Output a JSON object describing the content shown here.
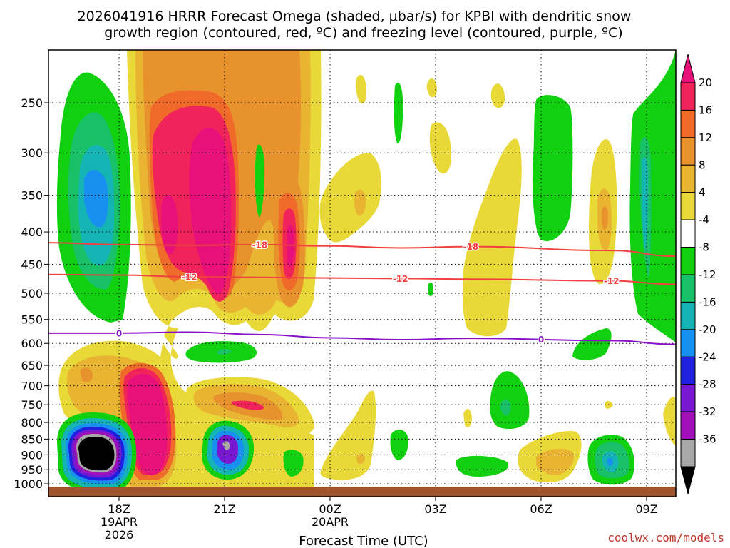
{
  "chart_data": {
    "type": "heatmap",
    "title_lines": [
      "2026041916 HRRR Forecast Omega (shaded, μbar/s) for KPBI with dendritic snow",
      "growth region (contoured, red, ºC) and freezing level (contoured, purple, ºC)"
    ],
    "xlabel": "Forecast Time (UTC)",
    "ylabel": "",
    "credit": "coolwx.com/models",
    "x_ticks": [
      {
        "label": "18Z",
        "sub": [
          "19APR",
          "2026"
        ],
        "hour": 18
      },
      {
        "label": "21Z",
        "sub": [],
        "hour": 21
      },
      {
        "label": "00Z",
        "sub": [
          "20APR"
        ],
        "hour": 24
      },
      {
        "label": "03Z",
        "sub": [],
        "hour": 27
      },
      {
        "label": "06Z",
        "sub": [],
        "hour": 30
      },
      {
        "label": "09Z",
        "sub": [],
        "hour": 33
      }
    ],
    "x_range_hours": [
      16,
      34
    ],
    "y_ticks": [
      "250",
      "300",
      "350",
      "400",
      "450",
      "500",
      "550",
      "600",
      "650",
      "700",
      "750",
      "800",
      "850",
      "900",
      "950",
      "1000"
    ],
    "y_range_hPa": [
      1025,
      200
    ],
    "colorbar": {
      "labels": [
        "20",
        "16",
        "12",
        "8",
        "4",
        "-4",
        "-8",
        "-12",
        "-16",
        "-20",
        "-24",
        "-28",
        "-32",
        "-36"
      ],
      "colors": [
        "#f0245a",
        "#f06a2a",
        "#e8922e",
        "#e8b432",
        "#e8d838",
        "#ffffff",
        "#10d010",
        "#18c068",
        "#14b4b4",
        "#1890f0",
        "#2020e0",
        "#7818d0",
        "#a010b8",
        "#a8a8a8"
      ],
      "top_arrow_color": "#e8107a",
      "bottom_arrow_color": "#000000"
    },
    "contours": [
      {
        "name": "freezing-level",
        "value": "0",
        "color": "#8a10c8",
        "pressures": [
          578,
          578,
          576,
          581,
          588,
          592,
          589,
          594,
          602
        ],
        "labels_at_hours": [
          18,
          30
        ]
      },
      {
        "name": "dgz-minus-12",
        "value": "-12",
        "color": "#f04040",
        "pressures": [
          467,
          468,
          471,
          472,
          473,
          474,
          475,
          478,
          484
        ],
        "labels_at_hours": [
          20,
          26,
          32
        ]
      },
      {
        "name": "dgz-minus-18",
        "value": "-18",
        "color": "#f04040",
        "pressures": [
          416,
          419,
          420,
          419,
          421,
          424,
          422,
          428,
          437
        ],
        "labels_at_hours": [
          22,
          28
        ]
      }
    ],
    "contour_hours": [
      16,
      18,
      20,
      22,
      24,
      26,
      28,
      32,
      34
    ]
  }
}
